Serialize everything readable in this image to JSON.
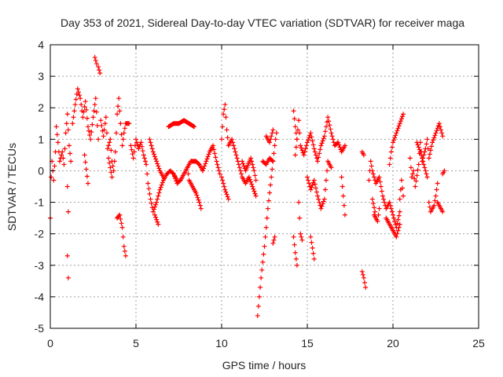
{
  "chart_data": {
    "type": "scatter",
    "title": "Day 353 of 2021, Sidereal Day-to-day VTEC variation (SDTVAR) for receiver maga",
    "xlabel": "GPS time / hours",
    "ylabel": "SDTVAR / TECUs",
    "xlim": [
      0,
      25
    ],
    "ylim": [
      -5,
      4
    ],
    "xticks": [
      0,
      5,
      10,
      15,
      20,
      25
    ],
    "yticks": [
      -5,
      -4,
      -3,
      -2,
      -1,
      0,
      1,
      2,
      3,
      4
    ],
    "grid": true,
    "marker": "+",
    "marker_color": "#ff0000",
    "segments": [
      [
        [
          0.0,
          -1.5
        ],
        [
          0.05,
          -0.2
        ],
        [
          0.1,
          0.3
        ],
        [
          0.2,
          -0.3
        ],
        [
          0.3,
          0.6
        ],
        [
          0.35,
          1.4
        ],
        [
          0.45,
          0.9
        ],
        [
          0.55,
          0.3
        ],
        [
          0.7,
          0.6
        ],
        [
          0.8,
          0.2
        ],
        [
          0.9,
          1.2
        ],
        [
          1.0,
          1.8
        ],
        [
          1.1,
          0.8
        ],
        [
          1.2,
          0.3
        ]
      ],
      [
        [
          1.0,
          -0.5
        ],
        [
          1.05,
          -1.3
        ]
      ],
      [
        [
          1.0,
          -2.7
        ],
        [
          1.05,
          -3.4
        ]
      ],
      [
        [
          1.3,
          1.5
        ],
        [
          1.45,
          2.1
        ],
        [
          1.6,
          2.6
        ],
        [
          1.75,
          2.3
        ],
        [
          1.9,
          1.7
        ],
        [
          2.05,
          2.2
        ],
        [
          2.2,
          1.4
        ],
        [
          2.35,
          1.0
        ],
        [
          2.5,
          1.7
        ],
        [
          2.65,
          2.3
        ],
        [
          2.8,
          1.0
        ]
      ],
      [
        [
          2.0,
          0.5
        ],
        [
          2.2,
          -0.4
        ]
      ],
      [
        [
          2.6,
          3.6
        ],
        [
          2.7,
          3.4
        ]
      ],
      [
        [
          2.8,
          3.3
        ],
        [
          2.9,
          3.1
        ]
      ],
      [
        [
          2.95,
          1.6
        ],
        [
          3.1,
          1.1
        ],
        [
          3.25,
          1.7
        ],
        [
          3.35,
          0.7
        ],
        [
          3.5,
          1.0
        ],
        [
          3.6,
          0.3
        ],
        [
          3.7,
          0.0
        ],
        [
          3.8,
          0.6
        ],
        [
          3.9,
          1.8
        ],
        [
          4.0,
          2.3
        ],
        [
          4.1,
          1.5
        ],
        [
          4.2,
          0.8
        ],
        [
          4.3,
          1.2
        ],
        [
          4.4,
          1.5
        ],
        [
          4.6,
          1.5
        ]
      ],
      [
        [
          3.4,
          0.4
        ],
        [
          3.6,
          -0.2
        ]
      ],
      [
        [
          3.9,
          -1.5
        ],
        [
          4.05,
          -1.4
        ],
        [
          4.2,
          -1.8
        ],
        [
          4.3,
          -2.4
        ],
        [
          4.4,
          -2.7
        ]
      ],
      [
        [
          4.7,
          0.8
        ],
        [
          4.85,
          0.4
        ],
        [
          5.0,
          1.0
        ],
        [
          5.15,
          0.7
        ],
        [
          5.3,
          0.9
        ],
        [
          5.45,
          0.5
        ],
        [
          5.6,
          0.2
        ],
        [
          5.7,
          -0.4
        ],
        [
          5.85,
          -0.9
        ],
        [
          6.0,
          -1.3
        ],
        [
          6.2,
          -1.0
        ],
        [
          6.4,
          -0.6
        ],
        [
          6.6,
          -0.3
        ],
        [
          6.8,
          -0.1
        ],
        [
          7.0,
          0.0
        ],
        [
          7.2,
          -0.1
        ],
        [
          7.4,
          -0.3
        ]
      ],
      [
        [
          5.8,
          1.0
        ],
        [
          6.0,
          0.6
        ],
        [
          6.2,
          0.3
        ],
        [
          6.4,
          0.0
        ],
        [
          6.6,
          -0.2
        ]
      ],
      [
        [
          6.1,
          -1.4
        ],
        [
          6.3,
          -1.7
        ]
      ],
      [
        [
          6.9,
          1.4
        ],
        [
          7.2,
          1.5
        ],
        [
          7.5,
          1.5
        ],
        [
          7.8,
          1.6
        ],
        [
          8.1,
          1.5
        ],
        [
          8.4,
          1.4
        ]
      ],
      [
        [
          7.2,
          -0.1
        ],
        [
          7.4,
          -0.4
        ],
        [
          7.6,
          -0.3
        ],
        [
          7.8,
          -0.1
        ],
        [
          8.0,
          0.1
        ],
        [
          8.2,
          0.3
        ],
        [
          8.5,
          0.3
        ],
        [
          8.7,
          0.2
        ],
        [
          8.9,
          0.0
        ],
        [
          9.1,
          0.3
        ],
        [
          9.3,
          0.6
        ],
        [
          9.5,
          0.8
        ],
        [
          9.7,
          0.3
        ],
        [
          9.9,
          -0.1
        ]
      ],
      [
        [
          8.0,
          0.1
        ],
        [
          8.1,
          -0.3
        ],
        [
          8.3,
          -0.5
        ],
        [
          8.5,
          -0.7
        ],
        [
          8.7,
          -1.0
        ],
        [
          8.8,
          -1.2
        ]
      ],
      [
        [
          10.0,
          1.0
        ],
        [
          10.1,
          1.8
        ],
        [
          10.2,
          2.1
        ],
        [
          10.3,
          1.3
        ],
        [
          10.4,
          0.8
        ],
        [
          10.6,
          1.0
        ],
        [
          10.8,
          0.6
        ],
        [
          11.0,
          0.2
        ],
        [
          11.2,
          -0.2
        ],
        [
          11.4,
          -0.4
        ],
        [
          11.6,
          -0.2
        ],
        [
          11.8,
          -0.5
        ],
        [
          12.0,
          -0.8
        ]
      ],
      [
        [
          10.0,
          -0.2
        ],
        [
          10.2,
          -0.6
        ],
        [
          10.4,
          -0.9
        ]
      ],
      [
        [
          11.2,
          0.3
        ],
        [
          11.4,
          0.0
        ],
        [
          11.7,
          0.4
        ],
        [
          11.9,
          0.0
        ],
        [
          12.0,
          -0.3
        ]
      ],
      [
        [
          12.1,
          -4.6
        ],
        [
          12.2,
          -4.0
        ],
        [
          12.3,
          -3.4
        ],
        [
          12.4,
          -2.9
        ],
        [
          12.5,
          -2.4
        ],
        [
          12.6,
          -1.8
        ],
        [
          12.7,
          -1.2
        ],
        [
          12.8,
          -0.7
        ],
        [
          12.9,
          -0.2
        ],
        [
          13.0,
          0.3
        ],
        [
          13.1,
          0.8
        ],
        [
          13.2,
          1.2
        ]
      ],
      [
        [
          12.4,
          0.3
        ],
        [
          12.6,
          0.2
        ],
        [
          12.8,
          0.4
        ],
        [
          13.0,
          0.3
        ]
      ],
      [
        [
          12.6,
          1.1
        ],
        [
          12.8,
          0.9
        ],
        [
          13.0,
          1.3
        ]
      ],
      [
        [
          13.0,
          -2.3
        ],
        [
          13.1,
          -2.1
        ]
      ],
      [
        [
          14.2,
          -2.1
        ],
        [
          14.3,
          -2.6
        ],
        [
          14.4,
          -3.0
        ]
      ],
      [
        [
          14.3,
          0.5
        ],
        [
          14.4,
          1.0
        ],
        [
          14.5,
          1.6
        ],
        [
          14.6,
          0.8
        ],
        [
          14.8,
          0.5
        ],
        [
          15.0,
          0.9
        ],
        [
          15.2,
          1.2
        ],
        [
          15.4,
          0.7
        ],
        [
          15.6,
          0.3
        ],
        [
          15.8,
          0.8
        ],
        [
          16.0,
          1.1
        ],
        [
          16.2,
          1.7
        ],
        [
          16.4,
          1.2
        ],
        [
          16.6,
          0.8
        ],
        [
          16.8,
          0.9
        ],
        [
          17.0,
          0.6
        ],
        [
          17.2,
          0.8
        ]
      ],
      [
        [
          14.5,
          -1.0
        ],
        [
          14.6,
          -2.0
        ],
        [
          14.7,
          -2.2
        ]
      ],
      [
        [
          14.2,
          1.9
        ],
        [
          14.3,
          1.4
        ],
        [
          14.4,
          1.0
        ]
      ],
      [
        [
          15.0,
          -0.2
        ],
        [
          15.2,
          -0.6
        ],
        [
          15.4,
          -0.3
        ],
        [
          15.6,
          -0.8
        ],
        [
          15.8,
          -1.2
        ],
        [
          16.0,
          -0.9
        ],
        [
          16.2,
          0.3
        ],
        [
          16.4,
          0.1
        ]
      ],
      [
        [
          15.2,
          -2.1
        ],
        [
          15.4,
          -2.8
        ]
      ],
      [
        [
          17.0,
          -0.2
        ],
        [
          17.1,
          -0.8
        ],
        [
          17.2,
          -1.4
        ]
      ],
      [
        [
          18.2,
          0.6
        ],
        [
          18.3,
          0.5
        ]
      ],
      [
        [
          18.2,
          -3.2
        ],
        [
          18.3,
          -3.4
        ],
        [
          18.4,
          -3.7
        ]
      ],
      [
        [
          18.6,
          -0.3
        ],
        [
          18.7,
          0.3
        ],
        [
          18.8,
          0.0
        ],
        [
          19.0,
          -0.4
        ],
        [
          19.2,
          -0.2
        ],
        [
          19.4,
          -0.8
        ],
        [
          19.6,
          -1.2
        ],
        [
          19.8,
          -1.0
        ],
        [
          20.0,
          -1.4
        ],
        [
          20.2,
          -1.8
        ],
        [
          20.4,
          -1.3
        ]
      ],
      [
        [
          18.8,
          -0.9
        ],
        [
          18.95,
          -1.3
        ]
      ],
      [
        [
          18.9,
          -1.4
        ],
        [
          19.1,
          -1.6
        ],
        [
          19.2,
          -1.2
        ]
      ],
      [
        [
          19.6,
          -1.5
        ],
        [
          19.8,
          -1.7
        ],
        [
          20.0,
          -1.9
        ],
        [
          20.2,
          -2.1
        ],
        [
          20.4,
          -1.7
        ]
      ],
      [
        [
          19.8,
          0.2
        ],
        [
          19.9,
          0.6
        ],
        [
          20.0,
          0.9
        ],
        [
          20.2,
          1.2
        ],
        [
          20.4,
          1.5
        ],
        [
          20.6,
          1.8
        ]
      ],
      [
        [
          20.4,
          -0.9
        ],
        [
          20.5,
          -0.3
        ],
        [
          20.6,
          -0.8
        ]
      ],
      [
        [
          21.0,
          0.4
        ],
        [
          21.1,
          -0.2
        ],
        [
          21.2,
          0.0
        ],
        [
          21.3,
          -0.5
        ],
        [
          21.5,
          0.2
        ],
        [
          21.6,
          0.9
        ],
        [
          21.7,
          0.3
        ],
        [
          21.9,
          0.7
        ],
        [
          22.0,
          1.0
        ],
        [
          22.1,
          0.4
        ],
        [
          22.3,
          0.9
        ],
        [
          22.5,
          1.2
        ],
        [
          22.7,
          1.5
        ],
        [
          22.9,
          1.1
        ]
      ],
      [
        [
          21.4,
          0.9
        ],
        [
          21.6,
          0.6
        ],
        [
          21.8,
          0.2
        ],
        [
          22.0,
          -0.2
        ]
      ],
      [
        [
          22.1,
          -1.0
        ],
        [
          22.2,
          -1.3
        ],
        [
          22.4,
          -1.1
        ],
        [
          22.5,
          -0.8
        ],
        [
          22.6,
          -0.4
        ]
      ],
      [
        [
          22.6,
          -1.0
        ],
        [
          22.8,
          -1.2
        ],
        [
          22.9,
          -1.3
        ]
      ],
      [
        [
          22.9,
          -0.1
        ],
        [
          23.0,
          0.0
        ]
      ]
    ]
  }
}
